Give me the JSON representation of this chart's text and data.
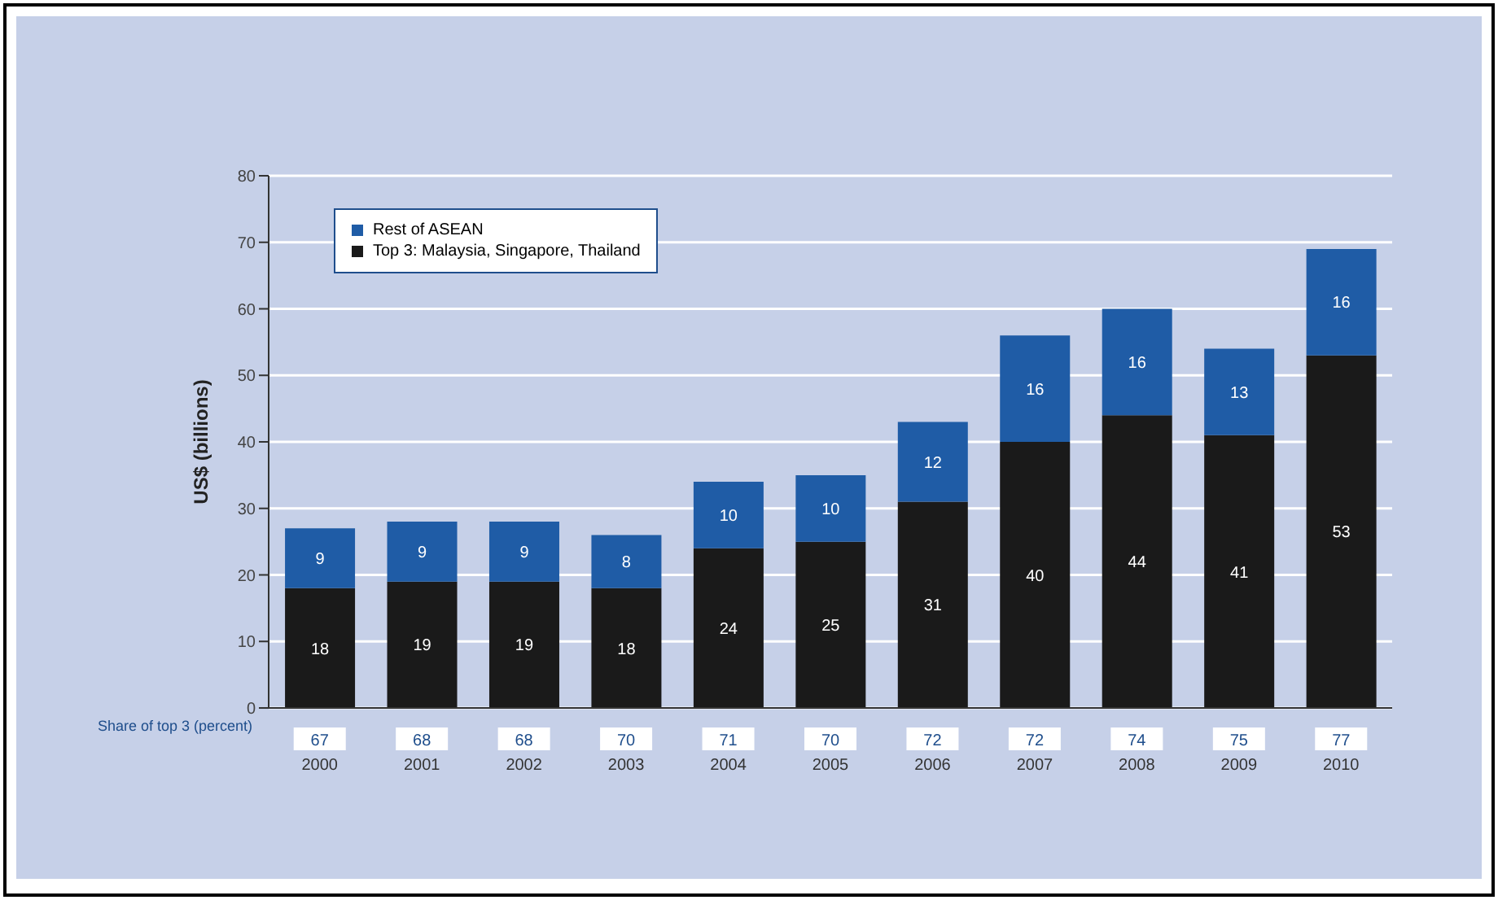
{
  "chart_data": {
    "type": "bar",
    "ylabel": "US$ (billions)",
    "categories": [
      "2000",
      "2001",
      "2002",
      "2003",
      "2004",
      "2005",
      "2006",
      "2007",
      "2008",
      "2009",
      "2010"
    ],
    "series": [
      {
        "name": "Top 3: Malaysia, Singapore, Thailand",
        "color": "#1a1a1a",
        "values": [
          18,
          19,
          19,
          18,
          24,
          25,
          31,
          40,
          44,
          41,
          53
        ]
      },
      {
        "name": "Rest of ASEAN",
        "color": "#1f5ca6",
        "values": [
          9,
          9,
          9,
          8,
          10,
          10,
          12,
          16,
          16,
          13,
          16
        ]
      }
    ],
    "stacked": true,
    "data_labels": true,
    "ylim": [
      0,
      80
    ],
    "yticks": [
      0,
      10,
      20,
      30,
      40,
      50,
      60,
      70,
      80
    ],
    "grid": "y",
    "legend": "top left",
    "annotations": [
      "Share of top 3 (percent)",
      "67",
      "68",
      "68",
      "70",
      "71",
      "70",
      "72",
      "72",
      "74",
      "75",
      "77"
    ]
  }
}
